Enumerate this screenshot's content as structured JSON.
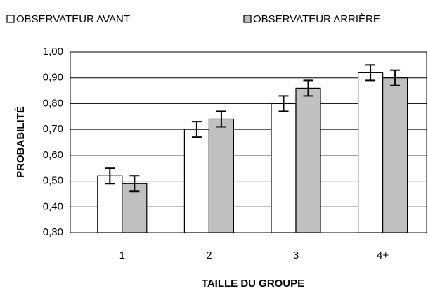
{
  "chart_data": {
    "type": "bar",
    "xlabel": "TAILLE DU GROUPE",
    "ylabel": "PROBABILITÉ",
    "categories": [
      "1",
      "2",
      "3",
      "4+"
    ],
    "series": [
      {
        "name": "OBSERVATEUR AVANT",
        "color": "#ffffff",
        "values": [
          0.52,
          0.7,
          0.8,
          0.92
        ],
        "errors": [
          0.03,
          0.03,
          0.03,
          0.03
        ]
      },
      {
        "name": "OBSERVATEUR ARRIÈRE",
        "color": "#c0c0c0",
        "values": [
          0.49,
          0.74,
          0.86,
          0.9
        ],
        "errors": [
          0.03,
          0.03,
          0.03,
          0.03
        ]
      }
    ],
    "ylim": [
      0.3,
      1.0
    ],
    "yticks": [
      {
        "value": 0.3,
        "label": "0,30"
      },
      {
        "value": 0.4,
        "label": "0,40"
      },
      {
        "value": 0.5,
        "label": "0,50"
      },
      {
        "value": 0.6,
        "label": "0,60"
      },
      {
        "value": 0.7,
        "label": "0,70"
      },
      {
        "value": 0.8,
        "label": "0,80"
      },
      {
        "value": 0.9,
        "label": "0,90"
      },
      {
        "value": 1.0,
        "label": "1,00"
      }
    ],
    "grid": true,
    "legend": "top"
  }
}
